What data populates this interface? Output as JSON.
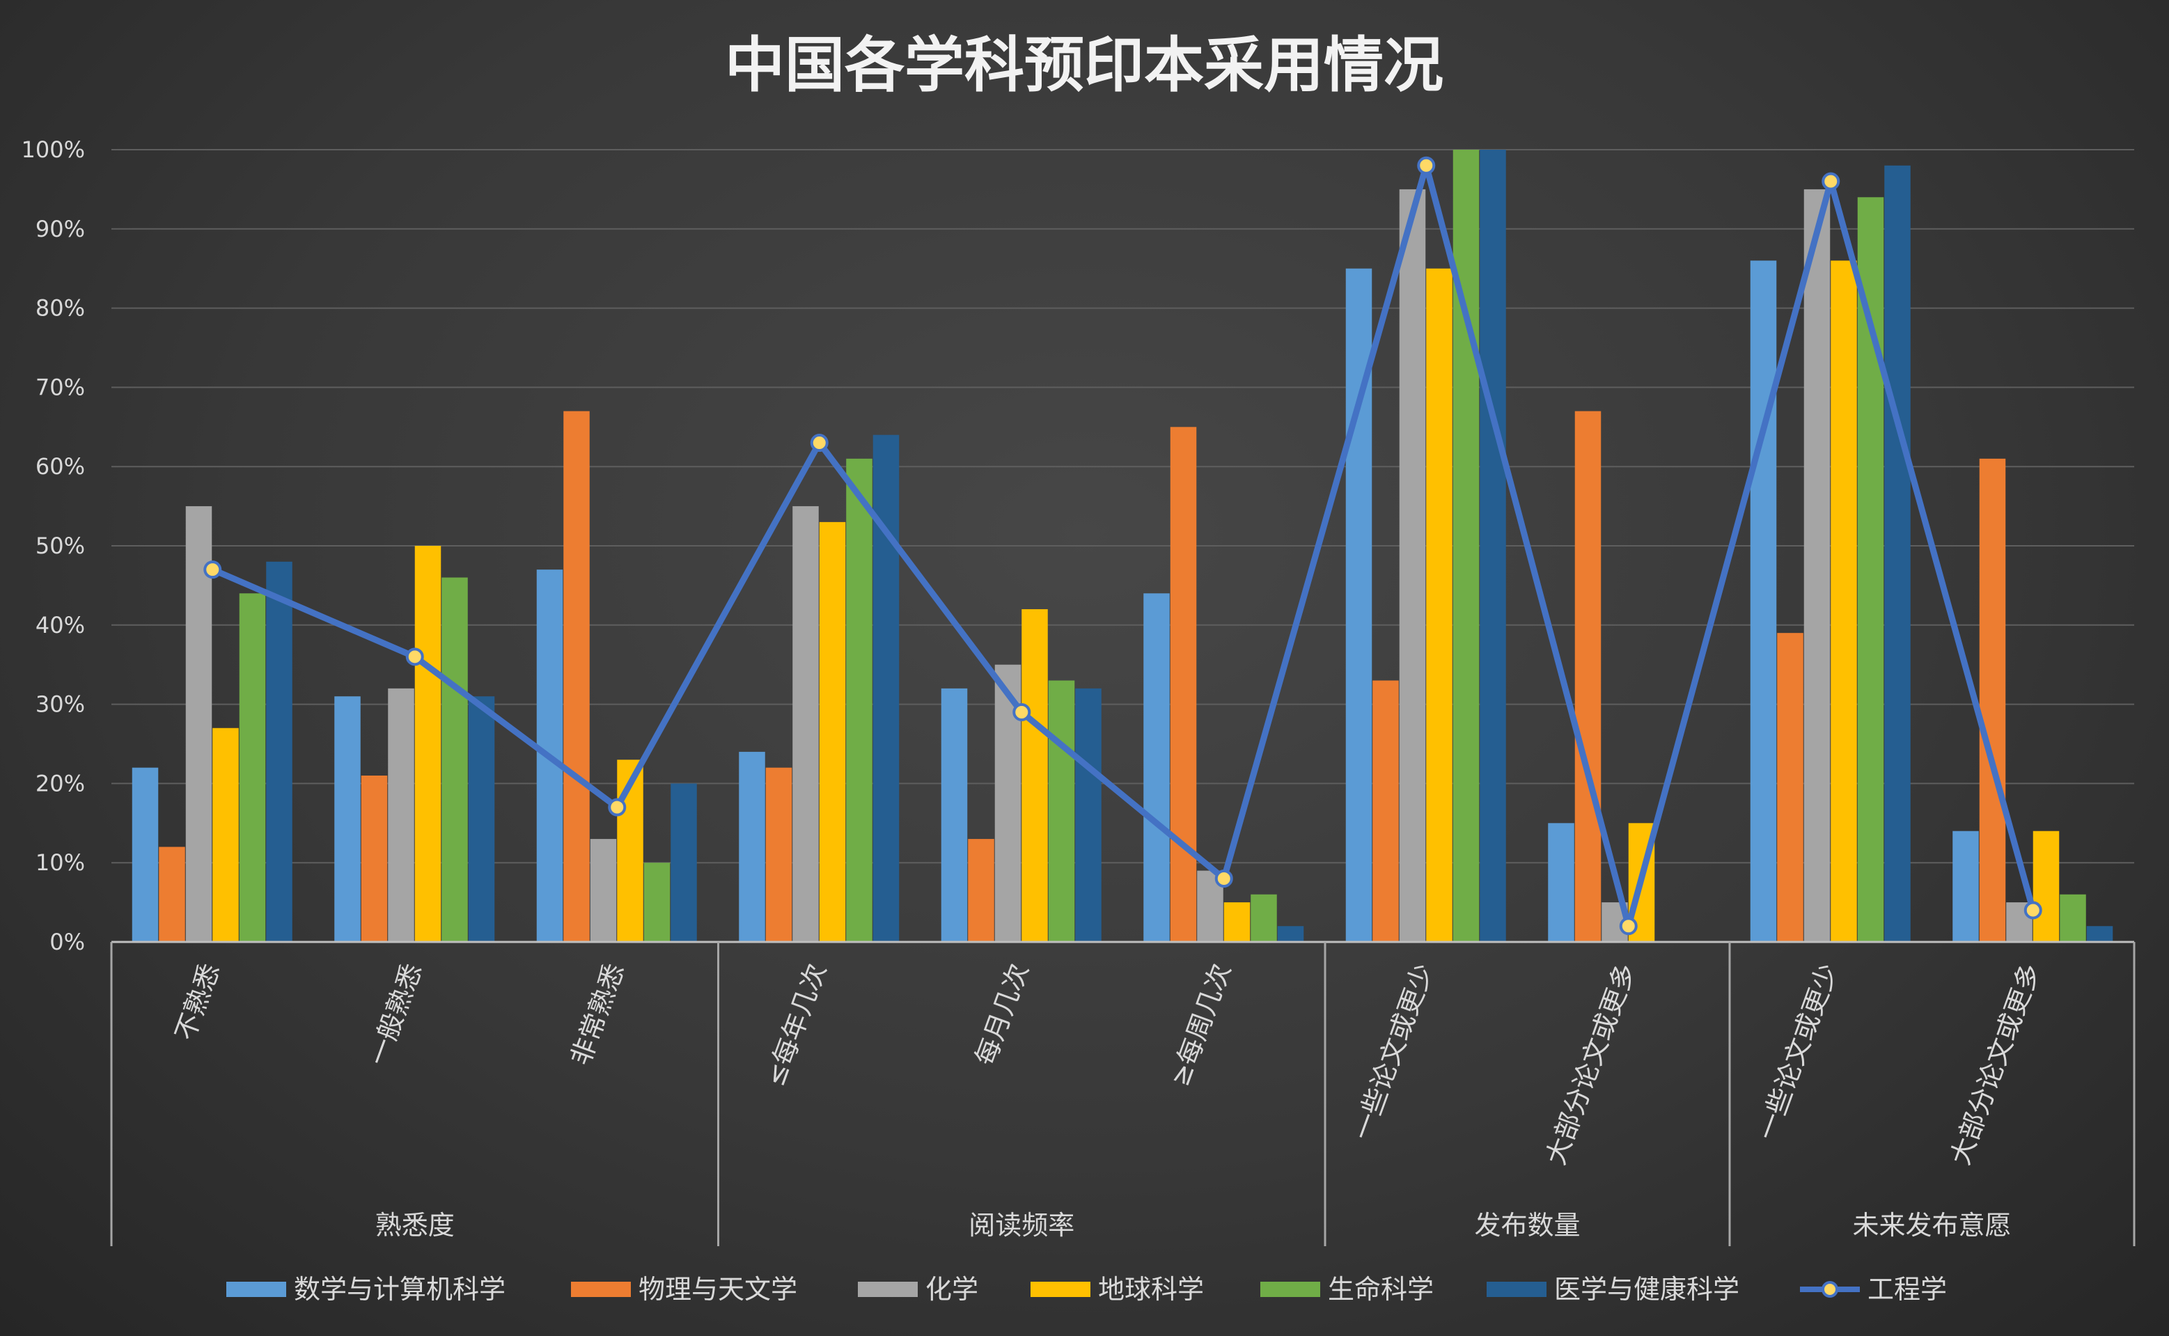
{
  "chart_data": {
    "type": "bar",
    "title": "中国各学科预印本采用情况",
    "xlabel": "",
    "ylabel": "",
    "ylim": [
      0,
      100
    ],
    "y_ticks": [
      "0%",
      "10%",
      "20%",
      "30%",
      "40%",
      "50%",
      "60%",
      "70%",
      "80%",
      "90%",
      "100%"
    ],
    "grid": true,
    "legend_position": "bottom",
    "groups": [
      {
        "label": "熟悉度",
        "categories": [
          "不熟悉",
          "一般熟悉",
          "非常熟悉"
        ]
      },
      {
        "label": "阅读频率",
        "categories": [
          "≤每年几次",
          "每月几次",
          "≥每周几次"
        ]
      },
      {
        "label": "发布数量",
        "categories": [
          "一些论文或更少",
          "大部分论文或更多"
        ]
      },
      {
        "label": "未来发布意愿",
        "categories": [
          "一些论文或更少",
          "大部分论文或更多"
        ]
      }
    ],
    "categories": [
      "不熟悉",
      "一般熟悉",
      "非常熟悉",
      "≤每年几次",
      "每月几次",
      "≥每周几次",
      "一些论文或更少",
      "大部分论文或更多",
      "一些论文或更少",
      "大部分论文或更多"
    ],
    "series": [
      {
        "name": "数学与计算机科学",
        "type": "bar",
        "color": "#5b9bd5",
        "values": [
          22,
          31,
          47,
          24,
          32,
          44,
          85,
          15,
          86,
          14
        ]
      },
      {
        "name": "物理与天文学",
        "type": "bar",
        "color": "#ed7d31",
        "values": [
          12,
          21,
          67,
          22,
          13,
          65,
          33,
          67,
          39,
          61
        ]
      },
      {
        "name": "化学",
        "type": "bar",
        "color": "#a5a5a5",
        "values": [
          55,
          32,
          13,
          55,
          35,
          9,
          95,
          5,
          95,
          5
        ]
      },
      {
        "name": "地球科学",
        "type": "bar",
        "color": "#ffc000",
        "values": [
          27,
          50,
          23,
          53,
          42,
          5,
          85,
          15,
          86,
          14
        ]
      },
      {
        "name": "生命科学",
        "type": "bar",
        "color": "#70ad47",
        "values": [
          44,
          46,
          10,
          61,
          33,
          6,
          100,
          0,
          94,
          6
        ]
      },
      {
        "name": "医学与健康科学",
        "type": "bar",
        "color": "#255e91",
        "values": [
          48,
          31,
          20,
          64,
          32,
          2,
          100,
          0,
          98,
          2
        ]
      },
      {
        "name": "工程学",
        "type": "line",
        "color": "#4472c4",
        "marker_color": "#ffd966",
        "values": [
          47,
          36,
          17,
          63,
          29,
          8,
          98,
          2,
          96,
          4
        ]
      }
    ]
  }
}
